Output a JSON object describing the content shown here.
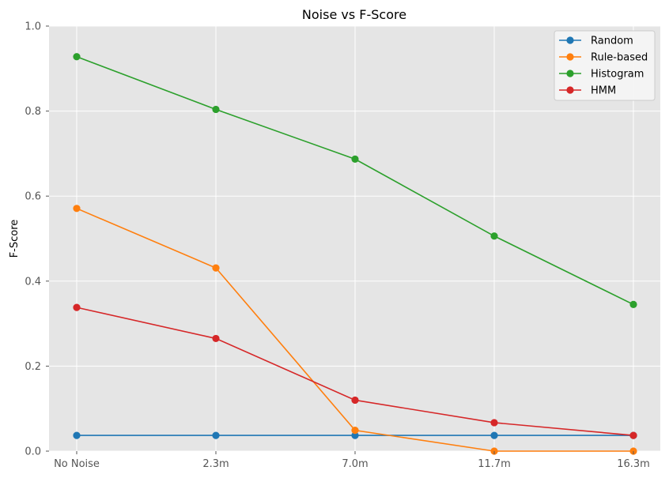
{
  "chart_data": {
    "type": "line",
    "title": "Noise vs F-Score",
    "xlabel": "",
    "ylabel": "F-Score",
    "categories": [
      "No Noise",
      "2.3m",
      "7.0m",
      "11.7m",
      "16.3m"
    ],
    "ylim": [
      0,
      1.0
    ],
    "yticks": [
      0.0,
      0.2,
      0.4,
      0.6,
      0.8,
      1.0
    ],
    "ytick_labels": [
      "0.0",
      "0.2",
      "0.4",
      "0.6",
      "0.8",
      "1.0"
    ],
    "grid": true,
    "legend_position": "top-right",
    "series": [
      {
        "name": "Random",
        "color": "#1f77b4",
        "values": [
          0.037,
          0.037,
          0.037,
          0.037,
          0.037
        ]
      },
      {
        "name": "Rule-based",
        "color": "#ff7f0e",
        "values": [
          0.571,
          0.431,
          0.049,
          0.0,
          0.0
        ]
      },
      {
        "name": "Histogram",
        "color": "#2ca02c",
        "values": [
          0.928,
          0.804,
          0.687,
          0.506,
          0.345
        ]
      },
      {
        "name": "HMM",
        "color": "#d62728",
        "values": [
          0.338,
          0.265,
          0.12,
          0.067,
          0.037
        ]
      }
    ]
  }
}
